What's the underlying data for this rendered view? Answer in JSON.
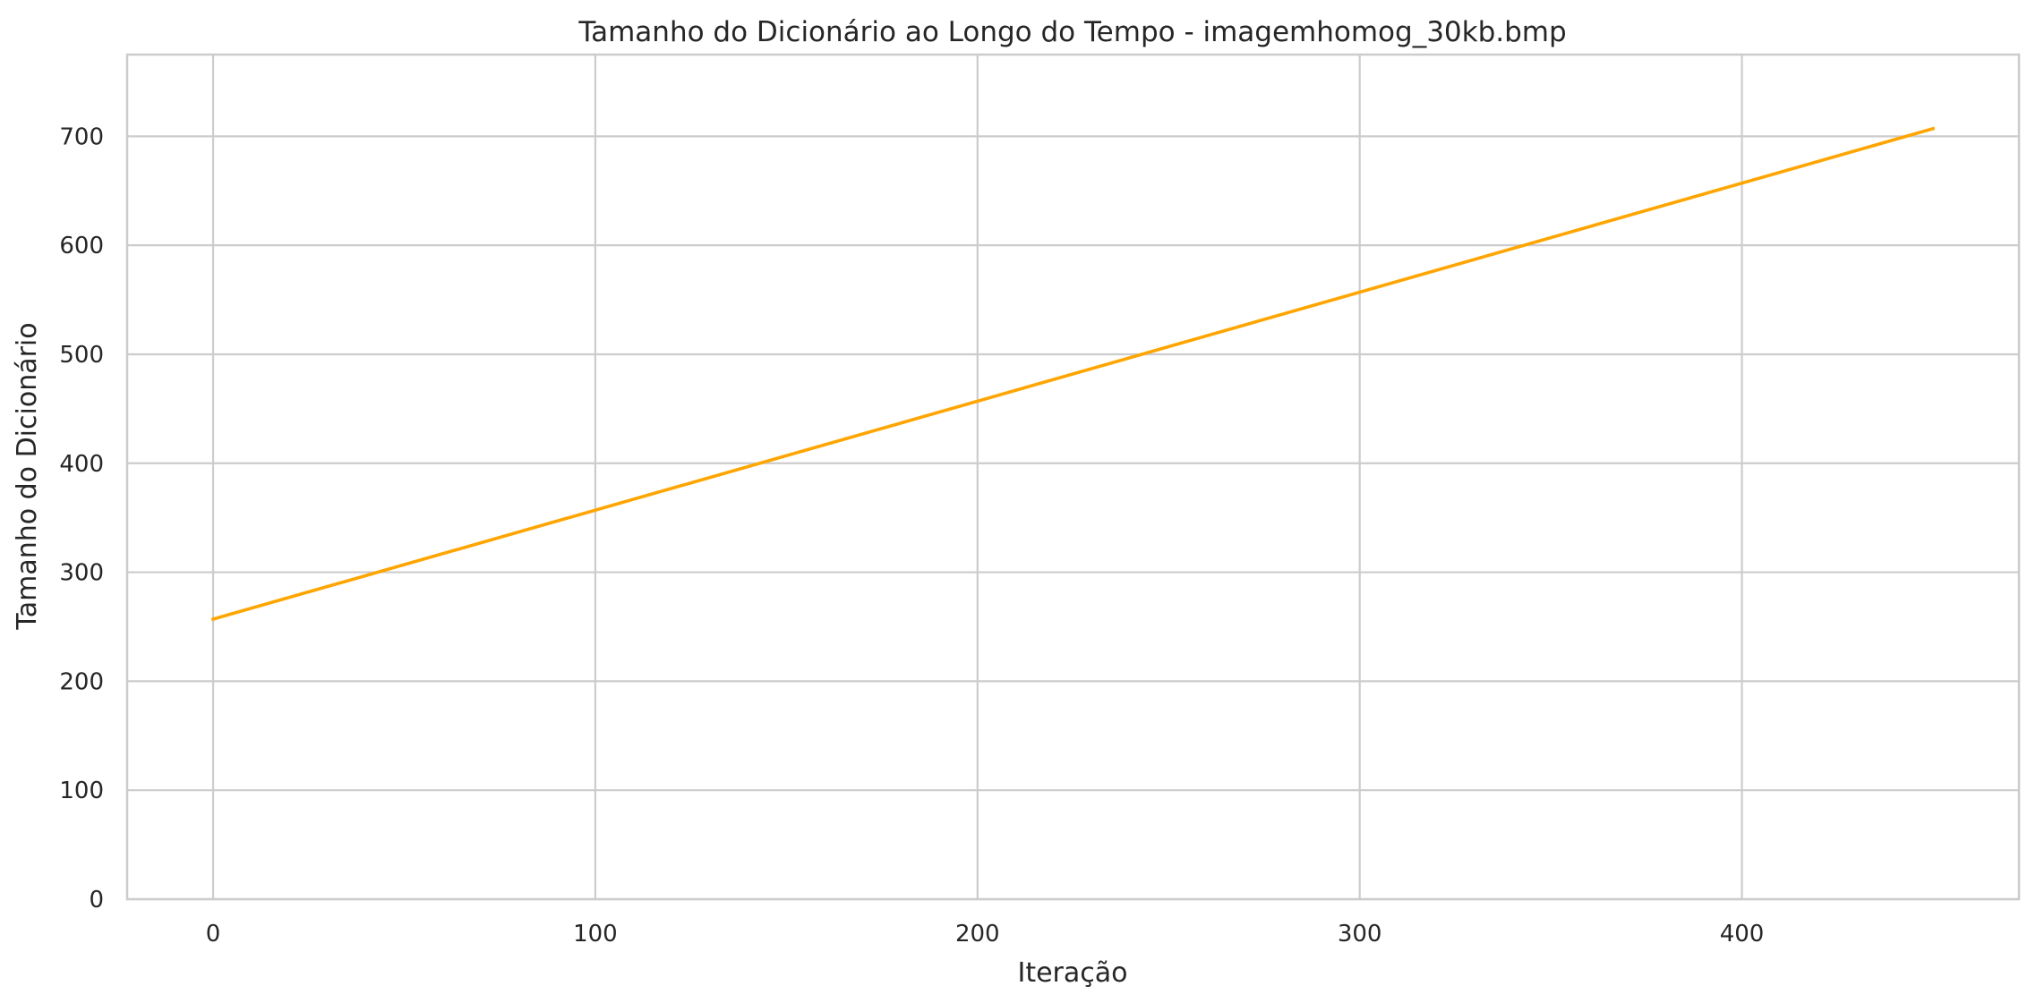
{
  "chart_data": {
    "type": "line",
    "title": "Tamanho do Dicionário ao Longo do Tempo - imagemhomog_30kb.bmp",
    "xlabel": "Iteração",
    "ylabel": "Tamanho do Dicionário",
    "xlim": [
      -22.5,
      472.5
    ],
    "ylim": [
      0,
      775
    ],
    "xticks": [
      0,
      100,
      200,
      300,
      400
    ],
    "yticks": [
      0,
      100,
      200,
      300,
      400,
      500,
      600,
      700
    ],
    "grid": true,
    "legend": "none",
    "series": [
      {
        "color": "#FFA500",
        "x": [
          0,
          450
        ],
        "y": [
          257,
          707
        ]
      }
    ]
  }
}
